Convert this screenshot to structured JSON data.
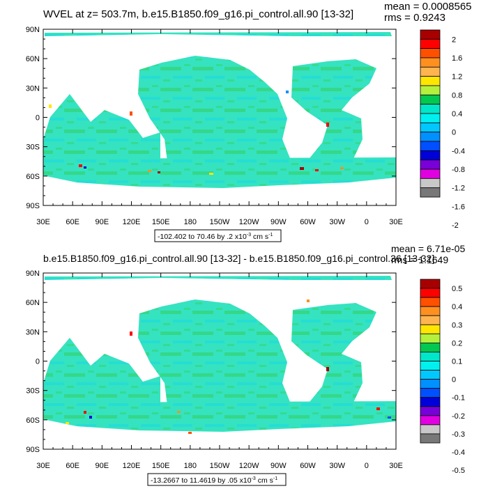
{
  "panels": [
    {
      "title": "WVEL at z= 503.7m, b.e15.B1850.f09_g16.pi_control.all.90 [13-32]",
      "mean_text": "mean = 0.0008565",
      "rms_text": "rms = 0.9243",
      "contour_info": "-102.402 to 70.46 by .2 x10",
      "units_exp": "-3",
      "units_tail": " cm s",
      "units_tail_exp": "-1"
    },
    {
      "title": "b.e15.B1850.f09_g16.pi_control.all.90 [13-32] - b.e15.B1850.f09_g16.pi_control.36 [13-32]",
      "mean_text": "mean = 6.71e-05",
      "rms_text": "rms = 1.1649",
      "contour_info": "-13.2667 to 11.4619 by .05 x10",
      "units_exp": "-3",
      "units_tail": " cm s",
      "units_tail_exp": "-1"
    }
  ],
  "colors": {
    "ocean_base": "#35e3c0",
    "ocean_green": "#35d05a",
    "ocean_cyan": "#1ad8e0",
    "land": "#ffffff",
    "frame": "#000000"
  },
  "chart_data": [
    {
      "type": "heatmap",
      "title": "WVEL at z= 503.7m, b.e15.B1850.f09_g16.pi_control.all.90 [13-32]",
      "x_ticks": [
        "30E",
        "60E",
        "90E",
        "120E",
        "150E",
        "180",
        "150W",
        "120W",
        "90W",
        "60W",
        "30W",
        "0",
        "30E"
      ],
      "y_ticks": [
        "90N",
        "60N",
        "30N",
        "0",
        "30S",
        "60S",
        "90S"
      ],
      "xlim": [
        30,
        390
      ],
      "ylim": [
        -90,
        90
      ],
      "colorbar_labels": [
        "2",
        "1.6",
        "1.2",
        "0.8",
        "0.4",
        "0",
        "-0.4",
        "-0.8",
        "-1.2",
        "-1.6",
        "-2"
      ],
      "colorbar_colors": [
        "#a80000",
        "#ff0000",
        "#ff5000",
        "#ff9020",
        "#ffb450",
        "#ffe600",
        "#b4f03c",
        "#00c850",
        "#00e6c8",
        "#00f0f0",
        "#00c8ff",
        "#0090ff",
        "#0050ff",
        "#0000d8",
        "#7800d8",
        "#e000e0",
        "#c8c8c8",
        "#787878"
      ],
      "mean": 0.0008565,
      "rms": 0.9243
    },
    {
      "type": "heatmap",
      "title": "b.e15.B1850.f09_g16.pi_control.all.90 [13-32] - b.e15.B1850.f09_g16.pi_control.36 [13-32]",
      "x_ticks": [
        "30E",
        "60E",
        "90E",
        "120E",
        "150E",
        "180",
        "150W",
        "120W",
        "90W",
        "60W",
        "30W",
        "0",
        "30E"
      ],
      "y_ticks": [
        "90N",
        "60N",
        "30N",
        "0",
        "30S",
        "60S",
        "90S"
      ],
      "xlim": [
        30,
        390
      ],
      "ylim": [
        -90,
        90
      ],
      "colorbar_labels": [
        "0.5",
        "0.4",
        "0.3",
        "0.2",
        "0.1",
        "0",
        "-0.1",
        "-0.2",
        "-0.3",
        "-0.4",
        "-0.5"
      ],
      "colorbar_colors": [
        "#a80000",
        "#ff0000",
        "#ff5000",
        "#ff9020",
        "#ffb450",
        "#ffe600",
        "#b4f03c",
        "#00c850",
        "#00e6c8",
        "#00f0f0",
        "#00c8ff",
        "#0090ff",
        "#0050ff",
        "#0000d8",
        "#7800d8",
        "#e000e0",
        "#c8c8c8",
        "#787878"
      ],
      "mean": 6.71e-05,
      "rms": 1.1649
    }
  ]
}
